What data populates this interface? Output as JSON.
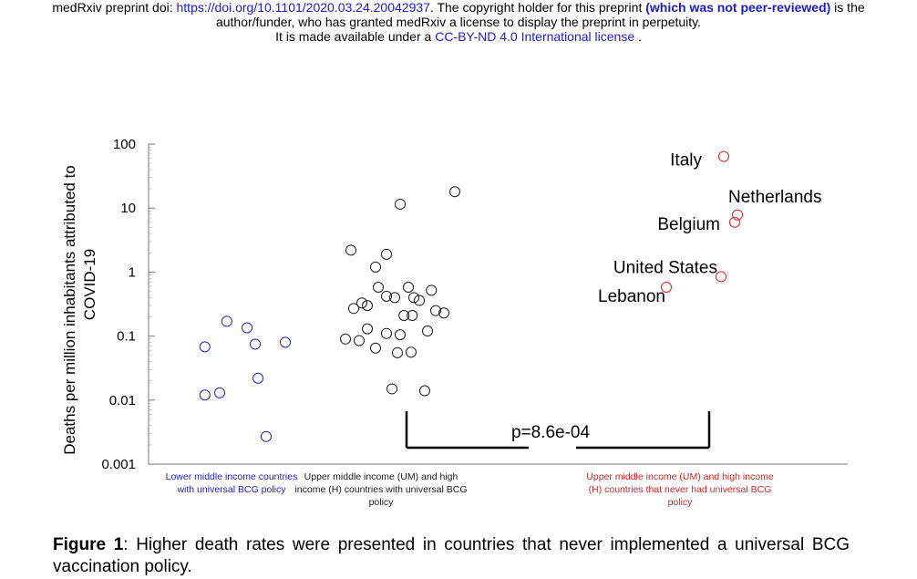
{
  "header": {
    "line1_prefix": "medRxiv preprint doi: ",
    "doi_link": "https://doi.org/10.1101/2020.03.24.20042937",
    "line1_mid": ". The copyright holder for this preprint ",
    "peer_review_note": "(which was not peer-reviewed)",
    "line1_suffix": " is the",
    "line2": "author/funder, who has granted medRxiv a license to display the preprint in perpetuity.",
    "line3_prefix": "It is made available under a ",
    "license_link": "CC-BY-ND 4.0 International license",
    "line3_suffix": " ."
  },
  "colors": {
    "blue": "#2020c8",
    "red": "#e02020",
    "black": "#1a1a1a",
    "link": "#1a1ad6"
  },
  "chart_data": {
    "type": "scatter",
    "yscale": "log",
    "ylim": [
      0.001,
      100
    ],
    "ylabel_line1": "Deaths per million inhabitants attributed to",
    "ylabel_line2": "COVID-19",
    "yticks": [
      {
        "value": 100,
        "label": "100"
      },
      {
        "value": 10,
        "label": "10"
      },
      {
        "value": 1,
        "label": "1"
      },
      {
        "value": 0.1,
        "label": "0.1"
      },
      {
        "value": 0.01,
        "label": "0.01"
      },
      {
        "value": 0.001,
        "label": "0.001"
      }
    ],
    "groups": [
      {
        "key": "lower",
        "color": "#2020c8",
        "label_lines": [
          "Lower middle income countries",
          "with universal BCG policy"
        ],
        "points": [
          {
            "j": -0.62,
            "y": 0.068
          },
          {
            "j": -0.22,
            "y": 0.17
          },
          {
            "j": 0.15,
            "y": 0.135
          },
          {
            "j": 0.3,
            "y": 0.075
          },
          {
            "j": 0.85,
            "y": 0.08
          },
          {
            "j": -0.62,
            "y": 0.012
          },
          {
            "j": -0.35,
            "y": 0.013
          },
          {
            "j": 0.35,
            "y": 0.022
          },
          {
            "j": 0.5,
            "y": 0.0027
          }
        ]
      },
      {
        "key": "upper_bcg",
        "color": "#1a1a1a",
        "label_lines": [
          "Upper middle income (UM)  and high",
          "income (H) countries with universal BCG",
          "policy"
        ],
        "points": [
          {
            "j": 0.85,
            "y": 18
          },
          {
            "j": -0.15,
            "y": 11.5
          },
          {
            "j": -1.05,
            "y": 2.2
          },
          {
            "j": -0.4,
            "y": 1.9
          },
          {
            "j": -0.6,
            "y": 1.2
          },
          {
            "j": -0.55,
            "y": 0.58
          },
          {
            "j": 0.0,
            "y": 0.58
          },
          {
            "j": 0.42,
            "y": 0.52
          },
          {
            "j": -0.4,
            "y": 0.42
          },
          {
            "j": -0.25,
            "y": 0.4
          },
          {
            "j": 0.1,
            "y": 0.4
          },
          {
            "j": -0.85,
            "y": 0.33
          },
          {
            "j": -0.75,
            "y": 0.3
          },
          {
            "j": 0.2,
            "y": 0.36
          },
          {
            "j": -1.0,
            "y": 0.27
          },
          {
            "j": 0.5,
            "y": 0.25
          },
          {
            "j": 0.65,
            "y": 0.23
          },
          {
            "j": -0.08,
            "y": 0.21
          },
          {
            "j": 0.07,
            "y": 0.21
          },
          {
            "j": -0.75,
            "y": 0.13
          },
          {
            "j": -0.4,
            "y": 0.11
          },
          {
            "j": -0.15,
            "y": 0.105
          },
          {
            "j": 0.35,
            "y": 0.12
          },
          {
            "j": -1.15,
            "y": 0.09
          },
          {
            "j": -0.9,
            "y": 0.085
          },
          {
            "j": -0.6,
            "y": 0.065
          },
          {
            "j": -0.2,
            "y": 0.055
          },
          {
            "j": 0.05,
            "y": 0.056
          },
          {
            "j": -0.3,
            "y": 0.015
          },
          {
            "j": 0.3,
            "y": 0.014
          }
        ]
      },
      {
        "key": "upper_nobcg",
        "color": "#e02020",
        "label_lines": [
          "Upper middle income (UM)  and high income",
          "(H) countries that never had universal BCG",
          "policy"
        ],
        "points": [
          {
            "j": 0.3,
            "y": 64,
            "country": "Italy"
          },
          {
            "j": 0.55,
            "y": 7.8,
            "country": "Netherlands"
          },
          {
            "j": 0.5,
            "y": 6.0,
            "country": "Belgium"
          },
          {
            "j": 0.25,
            "y": 0.85,
            "country": "United States"
          },
          {
            "j": -0.75,
            "y": 0.58,
            "country": "Lebanon"
          }
        ]
      }
    ],
    "annotation": {
      "text": "p=8.6e-04"
    }
  },
  "caption": {
    "label": "Figure 1",
    "text": ":  Higher death rates were presented in countries that never implemented a universal BCG vaccination policy."
  }
}
